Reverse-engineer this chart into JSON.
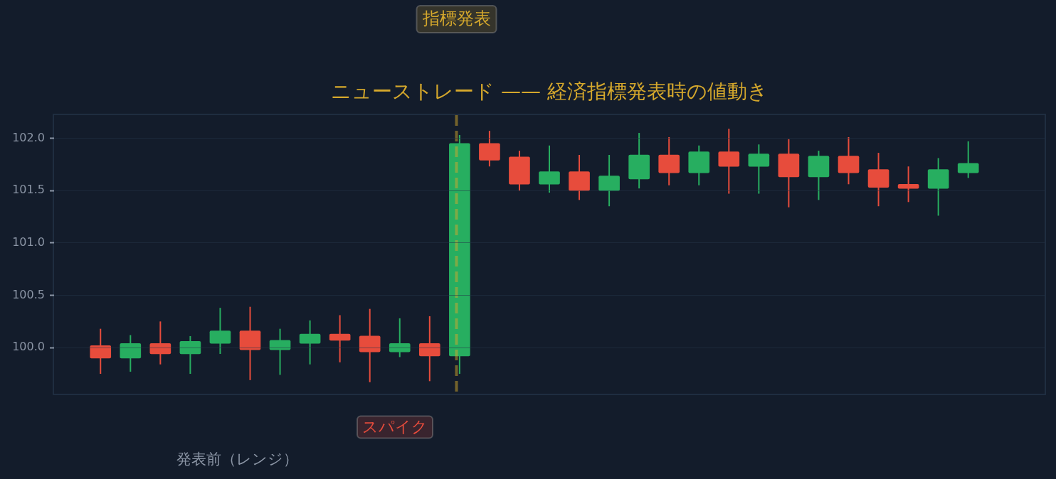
{
  "chart_data": {
    "type": "candlestick",
    "title": "ニューストレード —— 経済指標発表時の値動き",
    "categories": [
      null,
      null,
      null,
      null,
      null,
      null,
      null,
      null,
      null,
      null,
      null,
      null,
      null,
      null,
      null,
      null,
      null,
      null,
      null,
      null,
      null,
      null,
      null,
      null,
      null,
      null,
      null,
      null,
      null,
      null
    ],
    "ohlc": [
      [
        100.02,
        100.18,
        99.75,
        99.9
      ],
      [
        99.9,
        100.12,
        99.77,
        100.04
      ],
      [
        100.04,
        100.25,
        99.84,
        99.94
      ],
      [
        99.94,
        100.11,
        99.75,
        100.06
      ],
      [
        100.04,
        100.38,
        99.94,
        100.16
      ],
      [
        100.16,
        100.39,
        99.69,
        99.98
      ],
      [
        99.98,
        100.18,
        99.74,
        100.07
      ],
      [
        100.04,
        100.26,
        99.84,
        100.13
      ],
      [
        100.13,
        100.31,
        99.86,
        100.07
      ],
      [
        100.11,
        100.37,
        99.67,
        99.96
      ],
      [
        99.96,
        100.28,
        99.91,
        100.04
      ],
      [
        100.04,
        100.3,
        99.68,
        99.92
      ],
      [
        99.92,
        102.03,
        99.75,
        101.95
      ],
      [
        101.95,
        102.07,
        101.73,
        101.79
      ],
      [
        101.82,
        101.88,
        101.5,
        101.56
      ],
      [
        101.56,
        101.93,
        101.48,
        101.68
      ],
      [
        101.68,
        101.84,
        101.41,
        101.5
      ],
      [
        101.5,
        101.84,
        101.35,
        101.64
      ],
      [
        101.61,
        102.05,
        101.52,
        101.84
      ],
      [
        101.84,
        102.01,
        101.55,
        101.67
      ],
      [
        101.67,
        101.93,
        101.55,
        101.87
      ],
      [
        101.87,
        102.09,
        101.47,
        101.73
      ],
      [
        101.73,
        101.94,
        101.47,
        101.85
      ],
      [
        101.85,
        101.99,
        101.34,
        101.63
      ],
      [
        101.63,
        101.88,
        101.41,
        101.83
      ],
      [
        101.83,
        102.01,
        101.56,
        101.67
      ],
      [
        101.7,
        101.86,
        101.35,
        101.53
      ],
      [
        101.56,
        101.73,
        101.39,
        101.52
      ],
      [
        101.52,
        101.81,
        101.26,
        101.7
      ],
      [
        101.67,
        101.97,
        101.62,
        101.76
      ]
    ],
    "colors": [
      "#e74c3c",
      "#27ae60",
      "#e74c3c",
      "#27ae60",
      "#27ae60",
      "#e74c3c",
      "#27ae60",
      "#27ae60",
      "#e74c3c",
      "#e74c3c",
      "#27ae60",
      "#e74c3c",
      "#27ae60",
      "#e74c3c",
      "#e74c3c",
      "#27ae60",
      "#e74c3c",
      "#27ae60",
      "#27ae60",
      "#e74c3c",
      "#27ae60",
      "#e74c3c",
      "#27ae60",
      "#e74c3c",
      "#27ae60",
      "#e74c3c",
      "#e74c3c",
      "#e74c3c",
      "#27ae60",
      "#27ae60"
    ],
    "ylim": [
      99.56,
      102.22
    ],
    "yticks": [
      {
        "value": 100,
        "label": "100.0"
      },
      100.5,
      {
        "value": 101,
        "label": "101.0"
      },
      101.5,
      {
        "value": 102,
        "label": "102.0"
      }
    ],
    "grid": "y",
    "tick_labels": "y",
    "annotations": [
      "指標発表",
      "スパイク",
      "発表前（レンジ）"
    ]
  }
}
